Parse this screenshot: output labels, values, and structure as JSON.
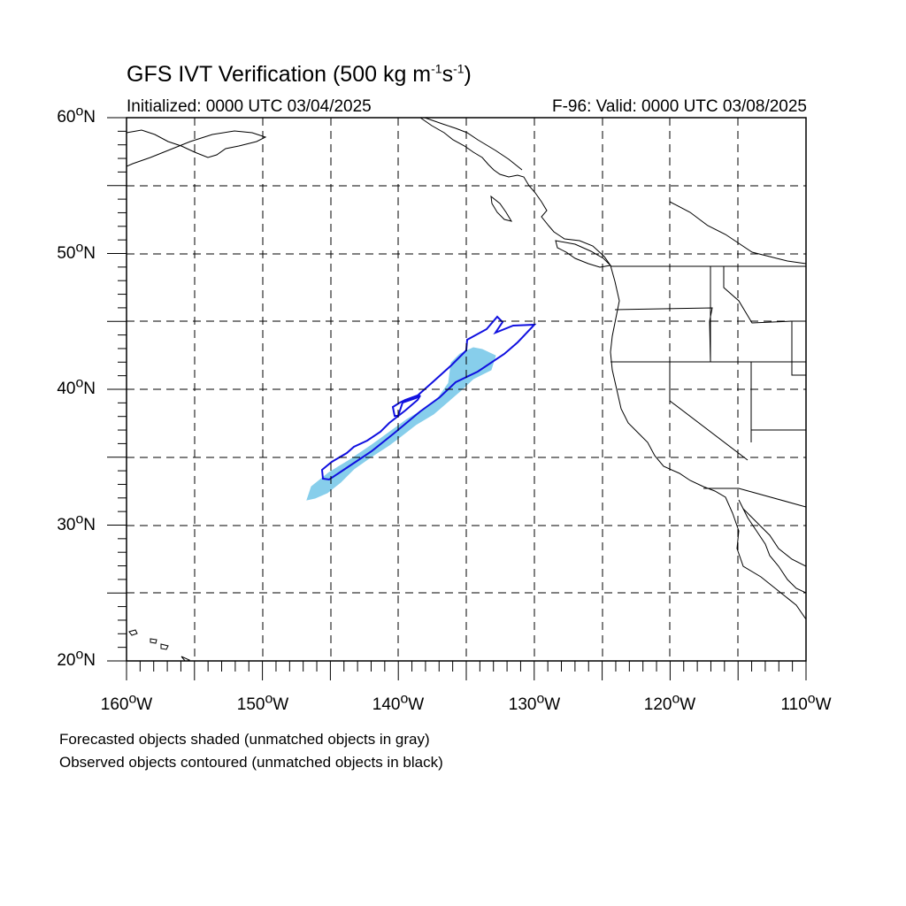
{
  "header": {
    "title_main": "GFS IVT Verification (500 kg m",
    "title_exp1": "-1",
    "title_mid": "s",
    "title_exp2": "-1",
    "title_end": ")",
    "initialized": "Initialized: 0000 UTC 03/04/2025",
    "valid": "F-96: Valid: 0000 UTC 03/08/2025"
  },
  "map": {
    "lat_labels": [
      "60",
      "50",
      "40",
      "30",
      "20"
    ],
    "lat_suffix": "N",
    "lon_labels": [
      "160",
      "150",
      "140",
      "130",
      "120",
      "110"
    ],
    "lon_suffix": "W",
    "lat_range": [
      20,
      60
    ],
    "lon_range": [
      -160,
      -110
    ],
    "grid": "dashed every 5 degrees",
    "forecast_fill_color": "#87ceeb",
    "observed_contour_color": "#1010e0",
    "coastline_color": "#000000"
  },
  "footer": {
    "note1": "Forecasted objects shaded (unmatched objects in gray)",
    "note2": "Observed objects contoured (unmatched objects in black)"
  }
}
